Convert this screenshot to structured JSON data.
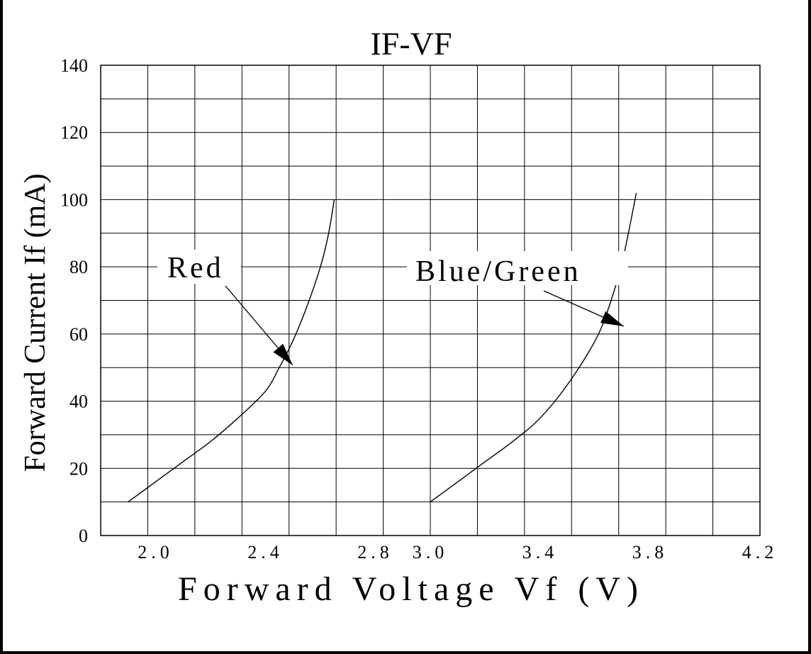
{
  "chart_data": {
    "type": "line",
    "title": "IF-VF",
    "xlabel": "Forward Voltage Vf (V)",
    "ylabel": "Forward Current If (mA)",
    "x_range": [
      1.8,
      4.2
    ],
    "y_range": [
      0,
      140
    ],
    "x_ticks": [
      {
        "value": 2.0,
        "label": "2.0"
      },
      {
        "value": 2.4,
        "label": "2.4"
      },
      {
        "value": 2.8,
        "label": "2.8"
      },
      {
        "value": 3.0,
        "label": "3.0"
      },
      {
        "value": 3.4,
        "label": "3.4"
      },
      {
        "value": 3.8,
        "label": "3.8"
      },
      {
        "value": 4.2,
        "label": "4.2"
      }
    ],
    "y_ticks": [
      {
        "value": 0,
        "label": "0"
      },
      {
        "value": 20,
        "label": "20"
      },
      {
        "value": 40,
        "label": "40"
      },
      {
        "value": 60,
        "label": "60"
      },
      {
        "value": 80,
        "label": "80"
      },
      {
        "value": 100,
        "label": "100"
      },
      {
        "value": 120,
        "label": "120"
      },
      {
        "value": 140,
        "label": "140"
      }
    ],
    "grid": true,
    "series": [
      {
        "name": "Red",
        "points": [
          [
            1.9,
            10
          ],
          [
            2.0,
            16
          ],
          [
            2.1,
            22
          ],
          [
            2.2,
            28
          ],
          [
            2.3,
            35
          ],
          [
            2.4,
            43
          ],
          [
            2.45,
            50
          ],
          [
            2.5,
            58
          ],
          [
            2.55,
            68
          ],
          [
            2.6,
            80
          ],
          [
            2.63,
            90
          ],
          [
            2.65,
            100
          ]
        ]
      },
      {
        "name": "Blue/Green",
        "points": [
          [
            3.0,
            10
          ],
          [
            3.1,
            16
          ],
          [
            3.2,
            22
          ],
          [
            3.3,
            28
          ],
          [
            3.4,
            35
          ],
          [
            3.5,
            45
          ],
          [
            3.6,
            58
          ],
          [
            3.65,
            68
          ],
          [
            3.7,
            82
          ],
          [
            3.75,
            102
          ]
        ]
      }
    ],
    "annotations": [
      {
        "text": "Red",
        "series": "Red"
      },
      {
        "text": "Blue/Green",
        "series": "Blue/Green"
      }
    ]
  }
}
